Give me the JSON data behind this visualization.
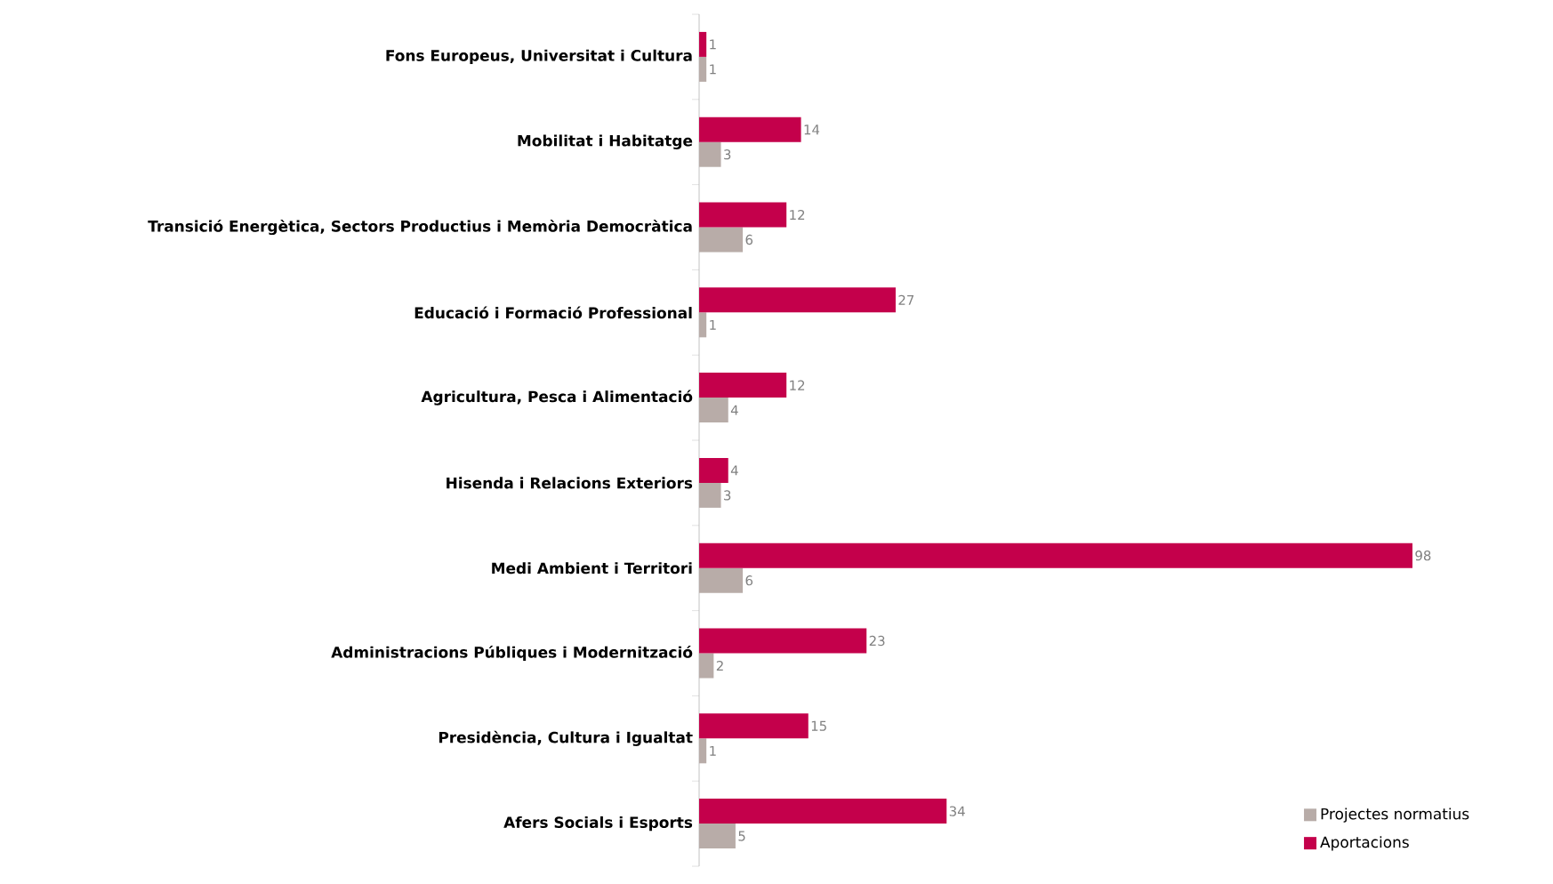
{
  "chart_data": {
    "type": "bar",
    "orientation": "horizontal",
    "categories": [
      "Fons Europeus, Universitat i Cultura",
      "Mobilitat i Habitatge",
      "Transició Energètica, Sectors Productius i Memòria Democràtica",
      "Educació i Formació Professional",
      "Agricultura, Pesca i Alimentació",
      "Hisenda i Relacions Exteriors",
      "Medi Ambient i Territori",
      "Administracions Públiques i Modernització",
      "Presidència, Cultura i Igualtat",
      "Afers Socials i Esports"
    ],
    "series": [
      {
        "name": "Projectes normatius",
        "color": "#b8aca8",
        "values": [
          1,
          3,
          6,
          1,
          4,
          3,
          6,
          2,
          1,
          5
        ]
      },
      {
        "name": "Aportacions",
        "color": "#c4004b",
        "values": [
          1,
          14,
          12,
          27,
          12,
          4,
          98,
          23,
          15,
          34
        ]
      }
    ],
    "data_labels": true,
    "legend": "bottom right"
  }
}
